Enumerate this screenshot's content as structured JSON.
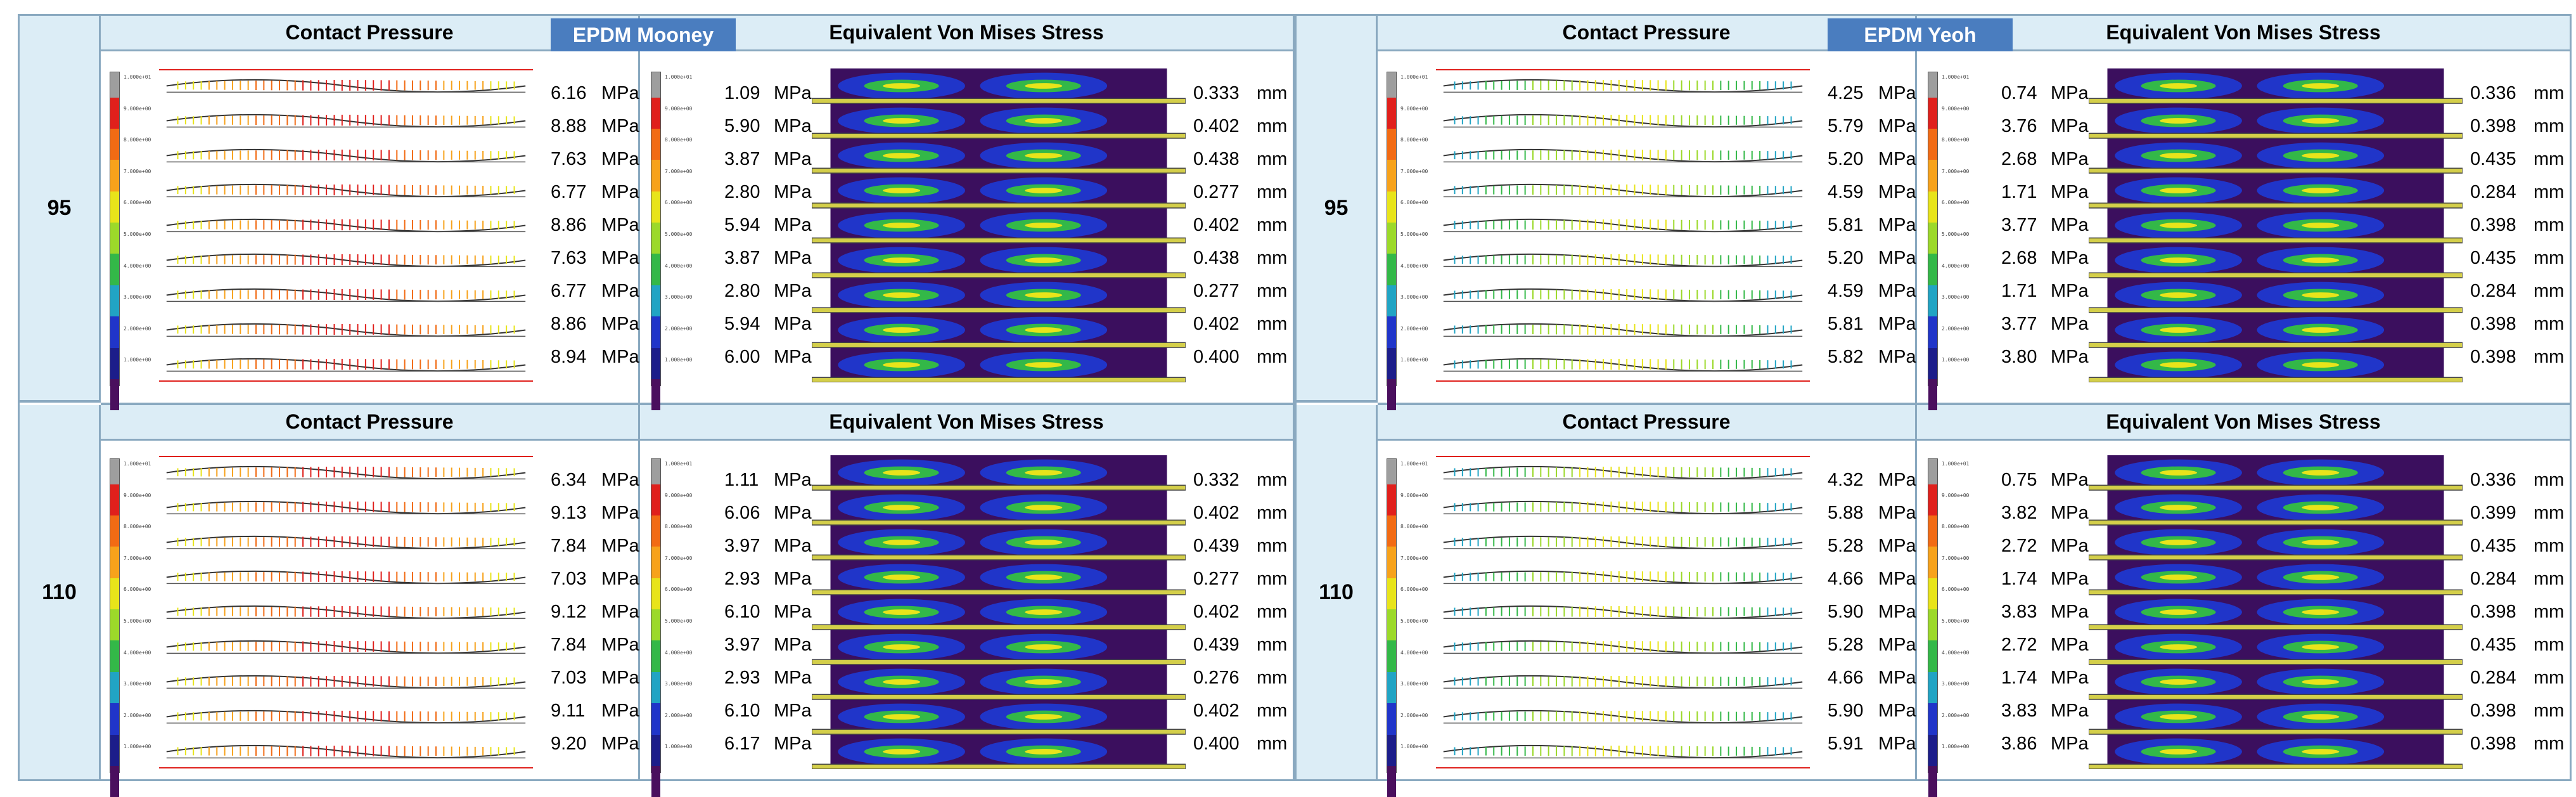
{
  "labels": {
    "contact_pressure": "Contact Pressure",
    "von_mises": "Equivalent Von  Mises Stress",
    "mpa": "MPa",
    "mm": "mm"
  },
  "legend_ticks": [
    "1.000e+01",
    "9.000e+00",
    "8.000e+00",
    "7.000e+00",
    "6.000e+00",
    "5.000e+00",
    "4.000e+00",
    "3.000e+00",
    "2.000e+00",
    "1.000e+00",
    "0.000e+00"
  ],
  "legend_colors": [
    "#9e9e9e",
    "#e0201c",
    "#f26b14",
    "#f7a21b",
    "#e8e41a",
    "#9cd92a",
    "#33b848",
    "#21a4c4",
    "#2035c9",
    "#1c1d8a",
    "#4a0f5e"
  ],
  "panels": [
    {
      "material": "EPDM Mooney",
      "rows": [
        {
          "label": "95",
          "contact_pressure_mpa": [
            "6.16",
            "8.88",
            "7.63",
            "6.77",
            "8.86",
            "7.63",
            "6.77",
            "8.86",
            "8.94"
          ],
          "von_mises_mpa": [
            "1.09",
            "5.90",
            "3.87",
            "2.80",
            "5.94",
            "3.87",
            "2.80",
            "5.94",
            "6.00"
          ],
          "displacement_mm": [
            "0.333",
            "0.402",
            "0.438",
            "0.277",
            "0.402",
            "0.438",
            "0.277",
            "0.402",
            "0.400"
          ]
        },
        {
          "label": "110",
          "contact_pressure_mpa": [
            "6.34",
            "9.13",
            "7.84",
            "7.03",
            "9.12",
            "7.84",
            "7.03",
            "9.11",
            "9.20"
          ],
          "von_mises_mpa": [
            "1.11",
            "6.06",
            "3.97",
            "2.93",
            "6.10",
            "3.97",
            "2.93",
            "6.10",
            "6.17"
          ],
          "displacement_mm": [
            "0.332",
            "0.402",
            "0.439",
            "0.277",
            "0.402",
            "0.439",
            "0.276",
            "0.402",
            "0.400"
          ]
        }
      ]
    },
    {
      "material": "EPDM Yeoh",
      "rows": [
        {
          "label": "95",
          "contact_pressure_mpa": [
            "4.25",
            "5.79",
            "5.20",
            "4.59",
            "5.81",
            "5.20",
            "4.59",
            "5.81",
            "5.82"
          ],
          "von_mises_mpa": [
            "0.74",
            "3.76",
            "2.68",
            "1.71",
            "3.77",
            "2.68",
            "1.71",
            "3.77",
            "3.80"
          ],
          "displacement_mm": [
            "0.336",
            "0.398",
            "0.435",
            "0.284",
            "0.398",
            "0.435",
            "0.284",
            "0.398",
            "0.398"
          ]
        },
        {
          "label": "110",
          "contact_pressure_mpa": [
            "4.32",
            "5.88",
            "5.28",
            "4.66",
            "5.90",
            "5.28",
            "4.66",
            "5.90",
            "5.91"
          ],
          "von_mises_mpa": [
            "0.75",
            "3.82",
            "2.72",
            "1.74",
            "3.83",
            "2.72",
            "1.74",
            "3.83",
            "3.86"
          ],
          "displacement_mm": [
            "0.336",
            "0.399",
            "0.435",
            "0.284",
            "0.398",
            "0.435",
            "0.284",
            "0.398",
            "0.398"
          ]
        }
      ]
    }
  ]
}
